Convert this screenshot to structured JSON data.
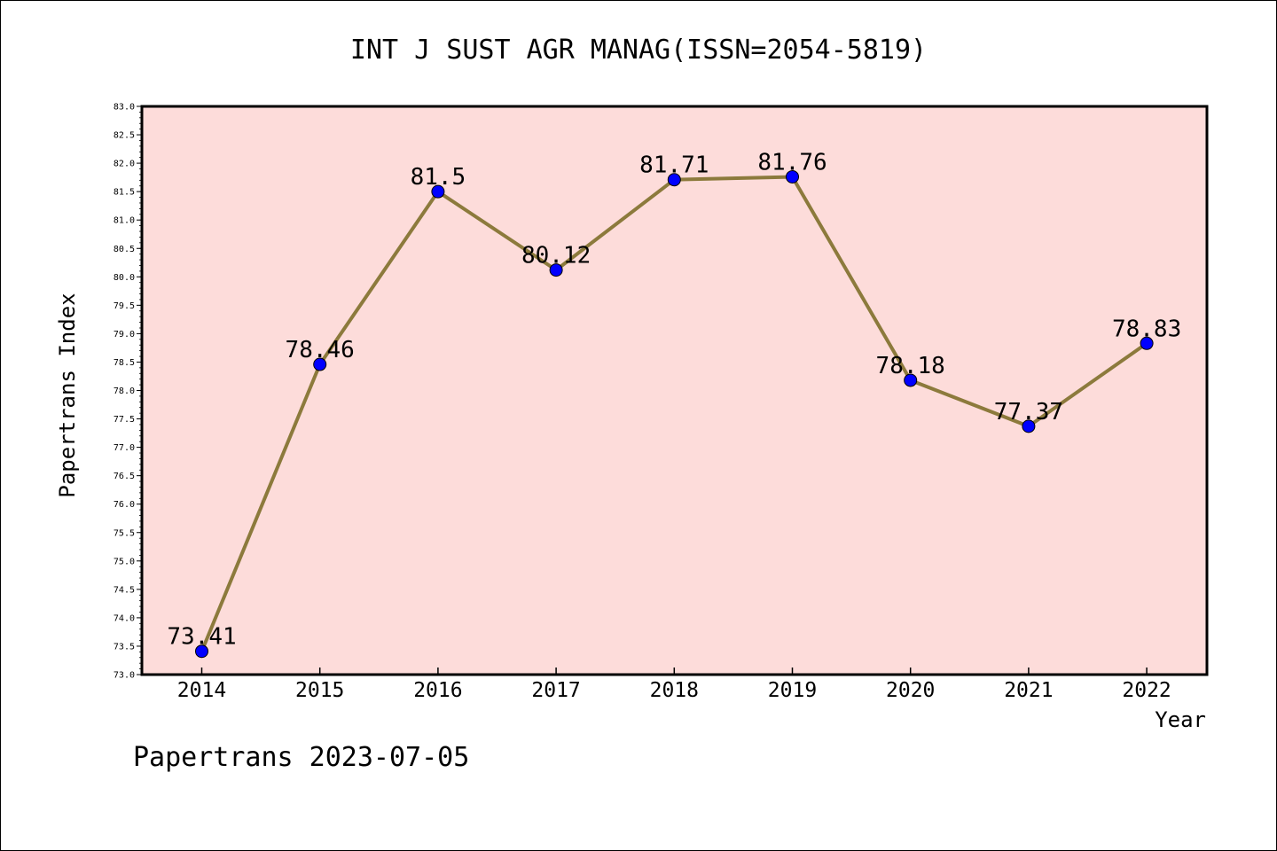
{
  "chart_data": {
    "type": "line",
    "title": "INT J SUST AGR MANAG(ISSN=2054-5819)",
    "xlabel": "Year",
    "ylabel": "Papertrans Index",
    "footer": "Papertrans 2023-07-05",
    "categories": [
      "2014",
      "2015",
      "2016",
      "2017",
      "2018",
      "2019",
      "2020",
      "2021",
      "2022"
    ],
    "series": [
      {
        "values": [
          73.41,
          78.46,
          81.5,
          80.12,
          81.71,
          81.76,
          78.18,
          77.37,
          78.83
        ],
        "labels": [
          "73.41",
          "78.46",
          "81.5",
          "80.12",
          "81.71",
          "81.76",
          "78.18",
          "77.37",
          "78.83"
        ]
      }
    ],
    "ylim": [
      73.0,
      83.0
    ],
    "yticks": [
      "73.0",
      "73.5",
      "74.0",
      "74.5",
      "75.0",
      "75.5",
      "76.0",
      "76.5",
      "77.0",
      "77.5",
      "78.0",
      "78.5",
      "79.0",
      "79.5",
      "80.0",
      "80.5",
      "81.0",
      "81.5",
      "82.0",
      "82.5",
      "83.0"
    ],
    "grid": false,
    "colors": {
      "plot_background": "#fddcda",
      "line": "#8c7a3c",
      "marker": "#0000ff",
      "axis": "#000000"
    }
  }
}
